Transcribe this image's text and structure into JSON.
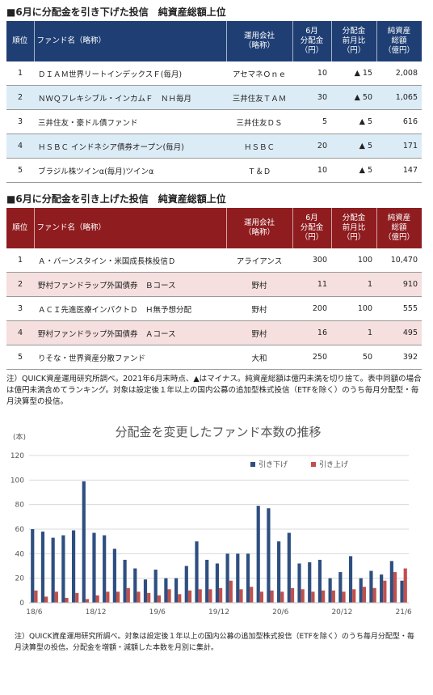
{
  "section1": {
    "title": "■6月に分配金を引き下げた投信　純資産総額上位",
    "table": {
      "header": [
        "順位",
        "ファンド名（略称）",
        "運用会社\n（略称）",
        "6月\n分配金\n（円）",
        "分配金\n前月比\n（円）",
        "純資産\n総額\n（億円）"
      ],
      "rows": [
        [
          "1",
          "ＤＩＡＭ世界リートインデックスＦ(毎月)",
          "アセマネＯｎｅ",
          "10",
          "▲ 15",
          "2,008"
        ],
        [
          "2",
          "ＮＷＱフレキシブル・インカムＦ　ＮＨ毎月",
          "三井住友ＴＡＭ",
          "30",
          "▲ 50",
          "1,065"
        ],
        [
          "3",
          "三井住友・豪ドル債ファンド",
          "三井住友ＤＳ",
          "5",
          "▲ 5",
          "616"
        ],
        [
          "4",
          "ＨＳＢＣ インドネシア債券オープン(毎月)",
          "ＨＳＢＣ",
          "20",
          "▲ 5",
          "171"
        ],
        [
          "5",
          "ブラジル株ツインα(毎月)ツインα",
          "Ｔ＆Ｄ",
          "10",
          "▲ 5",
          "147"
        ]
      ]
    }
  },
  "section2": {
    "title": "■6月に分配金を引き上げた投信　純資産総額上位",
    "table": {
      "header": [
        "順位",
        "ファンド名（略称）",
        "運用会社\n（略称）",
        "6月\n分配金\n（円）",
        "分配金\n前月比\n（円）",
        "純資産\n総額\n（億円）"
      ],
      "rows": [
        [
          "1",
          "Ａ・バーンスタイン・米国成長株投信Ｄ",
          "アライアンス",
          "300",
          "100",
          "10,470"
        ],
        [
          "2",
          "野村ファンドラップ外国債券　Ｂコース",
          "野村",
          "11",
          "1",
          "910"
        ],
        [
          "3",
          "ＡＣＩ先進医療インパクトＤ　Ｈ無予想分配",
          "野村",
          "200",
          "100",
          "555"
        ],
        [
          "4",
          "野村ファンドラップ外国債券　Ａコース",
          "野村",
          "16",
          "1",
          "495"
        ],
        [
          "5",
          "りそな・世界資産分散ファンド",
          "大和",
          "250",
          "50",
          "392"
        ]
      ]
    }
  },
  "note": "注）QUICK資産運用研究所調べ。2021年6月末時点、▲はマイナス。純資産総額は億円未満を切り捨て。表中同額の場合は億円未満含めてランキング。対象は設定後１年以上の国内公募の追加型株式投信（ETFを除く）のうち毎月分配型・毎月決算型の投信。",
  "chart_data": {
    "type": "bar",
    "title": "分配金を変更したファンド本数の推移",
    "y_label": "(本)",
    "categories": [
      "18/6",
      null,
      null,
      null,
      null,
      null,
      "18/12",
      null,
      null,
      null,
      null,
      null,
      "19/6",
      null,
      null,
      null,
      null,
      null,
      "19/12",
      null,
      null,
      null,
      null,
      null,
      "20/6",
      null,
      null,
      null,
      null,
      null,
      "20/12",
      null,
      null,
      null,
      null,
      null,
      "21/6"
    ],
    "series": [
      {
        "name": "引き下げ",
        "color": "#2e4f80",
        "values": [
          60,
          58,
          53,
          55,
          59,
          99,
          57,
          55,
          44,
          35,
          28,
          19,
          27,
          20,
          20,
          30,
          50,
          35,
          32,
          40,
          40,
          40,
          79,
          77,
          50,
          57,
          32,
          33,
          35,
          20,
          25,
          38,
          20,
          26,
          23,
          34,
          18
        ]
      },
      {
        "name": "引き上げ",
        "color": "#c0504d",
        "values": [
          10,
          5,
          9,
          4,
          8,
          3,
          6,
          9,
          9,
          12,
          9,
          8,
          6,
          11,
          7,
          10,
          11,
          11,
          12,
          18,
          11,
          13,
          9,
          10,
          9,
          12,
          11,
          9,
          10,
          10,
          9,
          11,
          13,
          12,
          18,
          25,
          28
        ]
      }
    ],
    "ylim": [
      0,
      120
    ],
    "yticks": [
      0,
      20,
      40,
      60,
      80,
      100,
      120
    ],
    "grid": true,
    "legend": "top-right"
  },
  "chart_note": "注）QUICK資産運用研究所調べ。対象は設定後１年以上の国内公募の追加型株式投信（ETFを除く）のうち毎月分配型・毎月決算型の投信。分配金を増額・減額した本数を月別に集計。"
}
